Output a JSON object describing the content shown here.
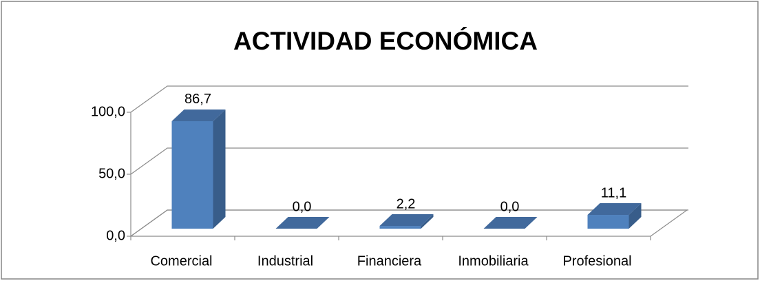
{
  "chart_data": {
    "type": "bar3d",
    "title": "ACTIVIDAD ECONÓMICA",
    "categories": [
      "Comercial",
      "Industrial",
      "Financiera",
      "Inmobiliaria",
      "Profesional"
    ],
    "values": [
      86.7,
      0.0,
      2.2,
      0.0,
      11.1
    ],
    "value_labels": [
      "86,7",
      "0,0",
      "2,2",
      "0,0",
      "11,1"
    ],
    "color": "#4f81bd",
    "ylim": [
      0,
      100
    ],
    "yticks": [
      {
        "value": 0,
        "label": "0,0"
      },
      {
        "value": 50,
        "label": "50,0"
      },
      {
        "value": 100,
        "label": "100,0"
      }
    ],
    "grid": true
  }
}
